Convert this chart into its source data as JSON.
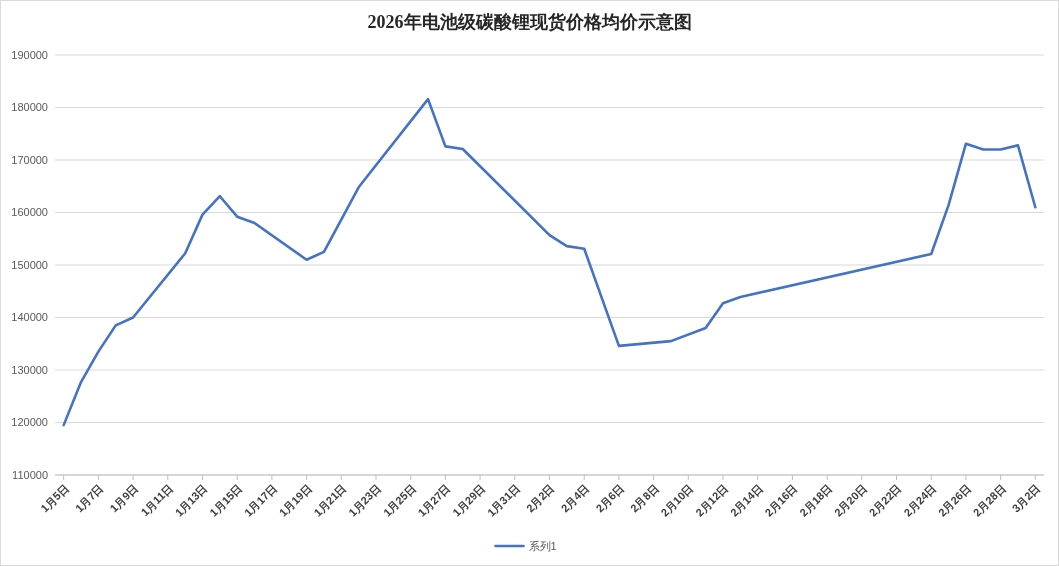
{
  "chart_data": {
    "type": "line",
    "title": "2026年电池级碳酸锂现货价格均价示意图",
    "x": [
      "2026-01-05",
      "2026-01-06",
      "2026-01-07",
      "2026-01-08",
      "2026-01-09",
      "2026-01-12",
      "2026-01-13",
      "2026-01-14",
      "2026-01-15",
      "2026-01-16",
      "2026-01-19",
      "2026-01-20",
      "2026-01-22",
      "2026-01-26",
      "2026-01-27",
      "2026-01-28",
      "2026-02-02",
      "2026-02-03",
      "2026-02-04",
      "2026-02-06",
      "2026-02-09",
      "2026-02-11",
      "2026-02-12",
      "2026-02-13",
      "2026-02-24",
      "2026-02-25",
      "2026-02-26",
      "2026-02-27",
      "2026-02-28",
      "2026-03-01",
      "2026-03-02"
    ],
    "series": [
      {
        "name": "系列1",
        "color": "#4472c4",
        "values": [
          119500,
          127700,
          133500,
          138500,
          140000,
          152200,
          159600,
          163100,
          159200,
          158000,
          151000,
          152500,
          164800,
          181600,
          172600,
          172100,
          155700,
          153600,
          153100,
          134600,
          135500,
          138000,
          142700,
          143900,
          152100,
          161400,
          173100,
          172000,
          172000,
          172800,
          161000
        ]
      }
    ],
    "xlim": [
      "2026-01-04T12:00",
      "2026-03-02T12:00"
    ],
    "xticks": [
      {
        "value": "2026-01-05",
        "label": "1月5日"
      },
      {
        "value": "2026-01-07",
        "label": "1月7日"
      },
      {
        "value": "2026-01-09",
        "label": "1月9日"
      },
      {
        "value": "2026-01-11",
        "label": "1月11日"
      },
      {
        "value": "2026-01-13",
        "label": "1月13日"
      },
      {
        "value": "2026-01-15",
        "label": "1月15日"
      },
      {
        "value": "2026-01-17",
        "label": "1月17日"
      },
      {
        "value": "2026-01-19",
        "label": "1月19日"
      },
      {
        "value": "2026-01-21",
        "label": "1月21日"
      },
      {
        "value": "2026-01-23",
        "label": "1月23日"
      },
      {
        "value": "2026-01-25",
        "label": "1月25日"
      },
      {
        "value": "2026-01-27",
        "label": "1月27日"
      },
      {
        "value": "2026-01-29",
        "label": "1月29日"
      },
      {
        "value": "2026-01-31",
        "label": "1月31日"
      },
      {
        "value": "2026-02-02",
        "label": "2月2日"
      },
      {
        "value": "2026-02-04",
        "label": "2月4日"
      },
      {
        "value": "2026-02-06",
        "label": "2月6日"
      },
      {
        "value": "2026-02-08",
        "label": "2月8日"
      },
      {
        "value": "2026-02-10",
        "label": "2月10日"
      },
      {
        "value": "2026-02-12",
        "label": "2月12日"
      },
      {
        "value": "2026-02-14",
        "label": "2月14日"
      },
      {
        "value": "2026-02-16",
        "label": "2月16日"
      },
      {
        "value": "2026-02-18",
        "label": "2月18日"
      },
      {
        "value": "2026-02-20",
        "label": "2月20日"
      },
      {
        "value": "2026-02-22",
        "label": "2月22日"
      },
      {
        "value": "2026-02-24",
        "label": "2月24日"
      },
      {
        "value": "2026-02-26",
        "label": "2月26日"
      },
      {
        "value": "2026-02-28",
        "label": "2月28日"
      },
      {
        "value": "2026-03-02",
        "label": "3月2日"
      }
    ],
    "ylim": [
      110000,
      190000
    ],
    "yticks": [
      110000,
      120000,
      130000,
      140000,
      150000,
      160000,
      170000,
      180000,
      190000
    ],
    "grid": "y",
    "legend": "bottom"
  }
}
